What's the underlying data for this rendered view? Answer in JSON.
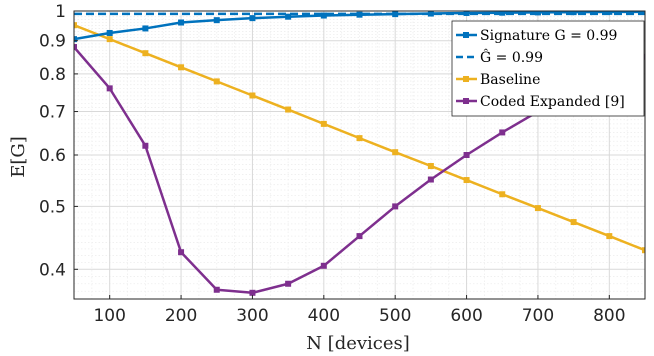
{
  "chart_data": {
    "type": "line",
    "title": "",
    "xlabel": "N [devices]",
    "ylabel": "E[G]",
    "xlim": [
      50,
      850
    ],
    "ylim": [
      0.36,
      1.0
    ],
    "yscale": "log",
    "grid": true,
    "legend_position": "top-right",
    "x_ticks": [
      100,
      200,
      300,
      400,
      500,
      600,
      700,
      800
    ],
    "y_ticks": [
      0.4,
      0.5,
      0.6,
      0.7,
      0.8,
      0.9,
      1
    ],
    "x_tick_labels": [
      "100",
      "200",
      "300",
      "400",
      "500",
      "600",
      "700",
      "800"
    ],
    "y_tick_labels": [
      "0.4",
      "0.5",
      "0.6",
      "0.7",
      "0.8",
      "0.9",
      "1"
    ],
    "x": [
      50,
      100,
      150,
      200,
      250,
      300,
      350,
      400,
      450,
      500,
      550,
      600,
      650,
      700,
      750,
      800,
      850
    ],
    "series": [
      {
        "name": "Signature G = 0.99",
        "color": "#0072BD",
        "style": "solid",
        "marker": "square",
        "values": [
          0.905,
          0.925,
          0.94,
          0.96,
          0.968,
          0.975,
          0.98,
          0.984,
          0.987,
          0.989,
          0.991,
          0.993,
          0.994,
          0.995,
          0.996,
          0.997,
          0.997
        ]
      },
      {
        "name": "Ĝ = 0.99",
        "color": "#0072BD",
        "style": "dashed",
        "marker": "none",
        "values": [
          0.99,
          0.99,
          0.99,
          0.99,
          0.99,
          0.99,
          0.99,
          0.99,
          0.99,
          0.99,
          0.99,
          0.99,
          0.99,
          0.99,
          0.99,
          0.99,
          0.99
        ]
      },
      {
        "name": "Baseline",
        "color": "#EDB120",
        "style": "solid",
        "marker": "square",
        "values": [
          0.951,
          0.905,
          0.861,
          0.819,
          0.779,
          0.741,
          0.705,
          0.67,
          0.637,
          0.606,
          0.577,
          0.549,
          0.522,
          0.497,
          0.473,
          0.45,
          0.428
        ]
      },
      {
        "name": "Coded Expanded [9]",
        "color": "#7E2F8E",
        "style": "solid",
        "marker": "square",
        "values": [
          0.88,
          0.76,
          0.62,
          0.425,
          0.372,
          0.368,
          0.38,
          0.405,
          0.45,
          0.5,
          0.55,
          0.6,
          0.65,
          0.7,
          0.75,
          0.8,
          0.85
        ]
      }
    ],
    "legend_labels": {
      "s0": "Signature G = 0.99",
      "s1_prefix": "Ĝ = 0.99",
      "s2": "Baseline",
      "s3": "Coded Expanded [9]"
    }
  }
}
